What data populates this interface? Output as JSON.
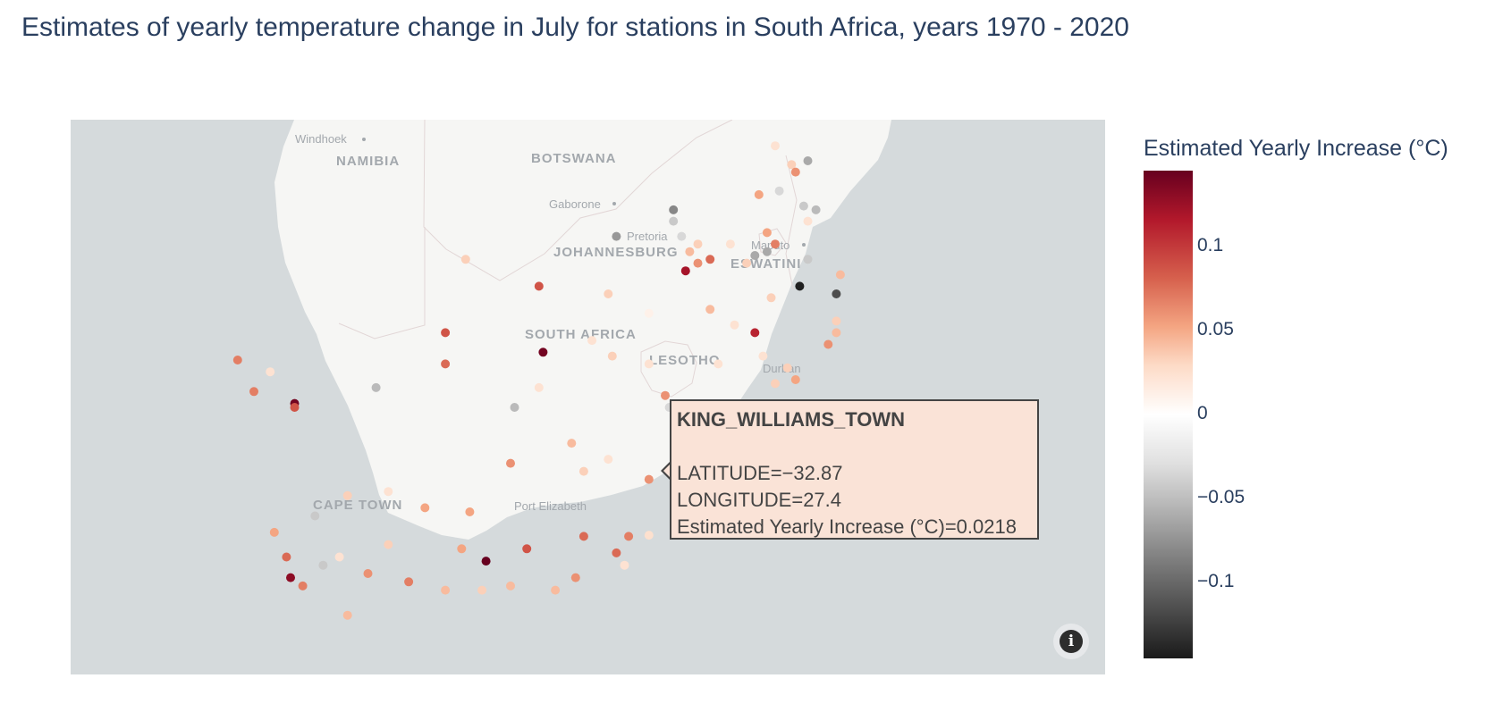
{
  "title": "Estimates of yearly temperature change in July for stations in South Africa, years 1970 - 2020",
  "map": {
    "country_labels": [
      "NAMIBIA",
      "BOTSWANA",
      "SOUTH AFRICA",
      "LESOTHO",
      "ESWATINI"
    ],
    "city_labels": [
      "Windhoek",
      "Gaborone",
      "Pretoria",
      "JOHANNESBURG",
      "Maputo",
      "Durban",
      "CAPE TOWN",
      "Port Elizabeth"
    ],
    "colors": {
      "ocean": "#d5dadc",
      "land": "#f6f6f4",
      "border": "#e2d6d6"
    }
  },
  "chart_data": {
    "type": "scatter",
    "projection": "mercator",
    "lon_range": [
      13.2,
      38.6
    ],
    "lat_range": [
      -36.2,
      -22.2
    ],
    "color_scale": "RdGy-reversed",
    "color_range": [
      -0.145,
      0.145
    ],
    "colorbar_title": "Estimated Yearly Increase (°C)",
    "colorbar_ticks": [
      "0.1",
      "0.05",
      "0",
      "−0.05",
      "−0.1"
    ],
    "points": [
      {
        "lon": 31.3,
        "lat": -23.3,
        "v": -0.05
      },
      {
        "lon": 30.9,
        "lat": -23.4,
        "v": 0.03
      },
      {
        "lon": 31.0,
        "lat": -23.6,
        "v": 0.06
      },
      {
        "lon": 30.5,
        "lat": -22.9,
        "v": 0.02
      },
      {
        "lon": 30.1,
        "lat": -24.2,
        "v": 0.05
      },
      {
        "lon": 30.6,
        "lat": -24.1,
        "v": -0.02
      },
      {
        "lon": 31.2,
        "lat": -24.5,
        "v": -0.03
      },
      {
        "lon": 31.5,
        "lat": -24.6,
        "v": -0.04
      },
      {
        "lon": 31.3,
        "lat": -24.9,
        "v": 0.02
      },
      {
        "lon": 29.4,
        "lat": -25.5,
        "v": 0.02
      },
      {
        "lon": 28.0,
        "lat": -24.6,
        "v": -0.07
      },
      {
        "lon": 28.0,
        "lat": -24.9,
        "v": -0.03
      },
      {
        "lon": 26.6,
        "lat": -25.3,
        "v": -0.06
      },
      {
        "lon": 28.2,
        "lat": -25.3,
        "v": -0.02
      },
      {
        "lon": 28.6,
        "lat": -25.5,
        "v": 0.03
      },
      {
        "lon": 28.4,
        "lat": -25.7,
        "v": 0.04
      },
      {
        "lon": 28.9,
        "lat": -25.9,
        "v": 0.08
      },
      {
        "lon": 28.6,
        "lat": -26.0,
        "v": 0.06
      },
      {
        "lon": 28.3,
        "lat": -26.2,
        "v": 0.12
      },
      {
        "lon": 29.8,
        "lat": -26.0,
        "v": 0.03
      },
      {
        "lon": 30.3,
        "lat": -25.2,
        "v": 0.05
      },
      {
        "lon": 30.5,
        "lat": -25.5,
        "v": 0.07
      },
      {
        "lon": 30.0,
        "lat": -25.8,
        "v": -0.05
      },
      {
        "lon": 31.3,
        "lat": -25.9,
        "v": -0.03
      },
      {
        "lon": 30.3,
        "lat": -25.7,
        "v": -0.05
      },
      {
        "lon": 31.1,
        "lat": -26.6,
        "v": -0.14
      },
      {
        "lon": 32.0,
        "lat": -26.8,
        "v": -0.1
      },
      {
        "lon": 32.1,
        "lat": -26.3,
        "v": 0.04
      },
      {
        "lon": 30.4,
        "lat": -26.9,
        "v": 0.03
      },
      {
        "lon": 32.0,
        "lat": -27.5,
        "v": 0.03
      },
      {
        "lon": 31.8,
        "lat": -28.1,
        "v": 0.06
      },
      {
        "lon": 32.0,
        "lat": -27.8,
        "v": 0.04
      },
      {
        "lon": 30.0,
        "lat": -27.8,
        "v": 0.11
      },
      {
        "lon": 30.2,
        "lat": -28.4,
        "v": 0.02
      },
      {
        "lon": 30.8,
        "lat": -28.7,
        "v": 0.03
      },
      {
        "lon": 31.0,
        "lat": -29.0,
        "v": 0.05
      },
      {
        "lon": 30.5,
        "lat": -29.1,
        "v": 0.03
      },
      {
        "lon": 29.1,
        "lat": -28.6,
        "v": 0.02
      },
      {
        "lon": 29.5,
        "lat": -27.6,
        "v": 0.02
      },
      {
        "lon": 28.9,
        "lat": -27.2,
        "v": 0.04
      },
      {
        "lon": 24.7,
        "lat": -26.6,
        "v": 0.09
      },
      {
        "lon": 22.9,
        "lat": -25.9,
        "v": 0.03
      },
      {
        "lon": 26.4,
        "lat": -26.8,
        "v": 0.03
      },
      {
        "lon": 27.4,
        "lat": -27.3,
        "v": 0.01
      },
      {
        "lon": 22.4,
        "lat": -27.8,
        "v": 0.09
      },
      {
        "lon": 22.4,
        "lat": -28.6,
        "v": 0.08
      },
      {
        "lon": 24.8,
        "lat": -28.3,
        "v": 0.14
      },
      {
        "lon": 26.5,
        "lat": -28.4,
        "v": 0.03
      },
      {
        "lon": 26.0,
        "lat": -28.0,
        "v": 0.02
      },
      {
        "lon": 27.4,
        "lat": -28.6,
        "v": 0.02
      },
      {
        "lon": 17.3,
        "lat": -28.5,
        "v": 0.07
      },
      {
        "lon": 18.1,
        "lat": -28.8,
        "v": 0.02
      },
      {
        "lon": 17.7,
        "lat": -29.3,
        "v": 0.07
      },
      {
        "lon": 18.7,
        "lat": -29.6,
        "v": 0.14
      },
      {
        "lon": 18.7,
        "lat": -29.7,
        "v": 0.09
      },
      {
        "lon": 20.7,
        "lat": -29.2,
        "v": -0.04
      },
      {
        "lon": 24.1,
        "lat": -29.7,
        "v": -0.04
      },
      {
        "lon": 24.7,
        "lat": -29.2,
        "v": 0.02
      },
      {
        "lon": 27.8,
        "lat": -29.4,
        "v": 0.06
      },
      {
        "lon": 27.9,
        "lat": -29.7,
        "v": -0.02
      },
      {
        "lon": 25.5,
        "lat": -30.6,
        "v": 0.04
      },
      {
        "lon": 24.0,
        "lat": -31.1,
        "v": 0.06
      },
      {
        "lon": 25.8,
        "lat": -31.3,
        "v": 0.03
      },
      {
        "lon": 27.4,
        "lat": -31.5,
        "v": 0.06
      },
      {
        "lon": 27.9,
        "lat": -31.3,
        "v": 0.07
      },
      {
        "lon": 28.3,
        "lat": -32.0,
        "v": 0.12
      },
      {
        "lon": 28.2,
        "lat": -32.5,
        "v": -0.06
      },
      {
        "lon": 27.4,
        "lat": -32.87,
        "v": 0.0218
      },
      {
        "lon": 26.9,
        "lat": -32.9,
        "v": 0.07
      },
      {
        "lon": 25.8,
        "lat": -32.9,
        "v": 0.08
      },
      {
        "lon": 26.6,
        "lat": -33.3,
        "v": 0.08
      },
      {
        "lon": 26.8,
        "lat": -33.6,
        "v": 0.02
      },
      {
        "lon": 24.4,
        "lat": -33.2,
        "v": 0.09
      },
      {
        "lon": 23.4,
        "lat": -33.5,
        "v": 0.15
      },
      {
        "lon": 22.8,
        "lat": -33.2,
        "v": 0.05
      },
      {
        "lon": 21.9,
        "lat": -32.2,
        "v": 0.05
      },
      {
        "lon": 23.0,
        "lat": -32.3,
        "v": 0.05
      },
      {
        "lon": 21.0,
        "lat": -31.8,
        "v": 0.02
      },
      {
        "lon": 20.0,
        "lat": -31.9,
        "v": 0.03
      },
      {
        "lon": 19.2,
        "lat": -32.4,
        "v": -0.03
      },
      {
        "lon": 18.2,
        "lat": -32.8,
        "v": 0.05
      },
      {
        "lon": 18.5,
        "lat": -33.4,
        "v": 0.08
      },
      {
        "lon": 18.6,
        "lat": -33.9,
        "v": 0.13
      },
      {
        "lon": 18.9,
        "lat": -34.1,
        "v": 0.07
      },
      {
        "lon": 19.4,
        "lat": -33.6,
        "v": -0.03
      },
      {
        "lon": 19.8,
        "lat": -33.4,
        "v": 0.02
      },
      {
        "lon": 20.5,
        "lat": -33.8,
        "v": 0.06
      },
      {
        "lon": 21.0,
        "lat": -33.1,
        "v": 0.03
      },
      {
        "lon": 21.5,
        "lat": -34.0,
        "v": 0.07
      },
      {
        "lon": 22.4,
        "lat": -34.2,
        "v": 0.04
      },
      {
        "lon": 23.3,
        "lat": -34.2,
        "v": 0.03
      },
      {
        "lon": 24.0,
        "lat": -34.1,
        "v": 0.04
      },
      {
        "lon": 25.6,
        "lat": -33.9,
        "v": 0.06
      },
      {
        "lon": 25.1,
        "lat": -34.2,
        "v": 0.04
      },
      {
        "lon": 20.0,
        "lat": -34.8,
        "v": 0.04
      },
      {
        "lon": 26.4,
        "lat": -31.0,
        "v": 0.02
      }
    ]
  },
  "tooltip": {
    "station": "KING_WILLIAMS_TOWN",
    "latitude": "LATITUDE=−32.87",
    "longitude": "LONGITUDE=27.4",
    "value": "Estimated Yearly Increase (°C)=0.0218",
    "fill": "#fae3d7"
  },
  "info_icon": "info-icon"
}
